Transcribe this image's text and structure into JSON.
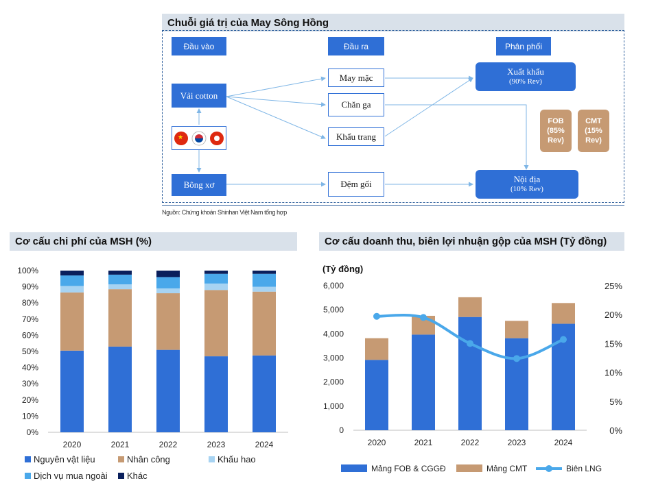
{
  "value_chain": {
    "title": "Chuỗi giá trị của May Sông Hồng",
    "col_inputs": "Đầu vào",
    "col_outputs": "Đầu ra",
    "col_distribution": "Phân phối",
    "input_cotton": "Vải cotton",
    "input_fiber": "Bông xơ",
    "flags": [
      "China",
      "South Korea",
      "Hong Kong"
    ],
    "output_garment": "May mặc",
    "output_bedding": "Chăn ga",
    "output_mask": "Khẩu trang",
    "output_pillow": "Đệm gối",
    "export_label": "Xuất khẩu",
    "export_share": "(90% Rev)",
    "domestic_label": "Nội địa",
    "domestic_share": "(10% Rev)",
    "fob": "FOB (85% Rev)",
    "cmt": "CMT (15% Rev)",
    "source": "Nguồn: Chứng khoán Shinhan Việt Nam tổng hợp"
  },
  "cost_chart_title": "Cơ cấu chi phí của MSH (%)",
  "revenue_chart_title": "Cơ cấu doanh thu, biên lợi nhuận gộp của MSH (Tỷ đồng)",
  "chart_data": [
    {
      "type": "bar",
      "stacked": true,
      "title": "Cơ cấu chi phí của MSH (%)",
      "categories": [
        "2020",
        "2021",
        "2022",
        "2023",
        "2024"
      ],
      "series": [
        {
          "name": "Nguyên vật liệu",
          "color": "#2f6fd6",
          "values": [
            50.5,
            53.0,
            51.0,
            47.0,
            47.5
          ]
        },
        {
          "name": "Nhân công",
          "color": "#c69a73",
          "values": [
            36.0,
            35.5,
            35.0,
            41.0,
            39.5
          ]
        },
        {
          "name": "Khấu hao",
          "color": "#a7d3f2",
          "values": [
            4.0,
            3.0,
            3.0,
            4.0,
            3.0
          ]
        },
        {
          "name": "Dịch vụ mua ngoài",
          "color": "#4aa8ea",
          "values": [
            6.5,
            6.0,
            7.0,
            6.0,
            8.0
          ]
        },
        {
          "name": "Khác",
          "color": "#0a1f5c",
          "values": [
            3.0,
            2.5,
            4.0,
            2.0,
            2.0
          ]
        }
      ],
      "ylim": [
        0,
        100
      ],
      "yticks": [
        "0%",
        "10%",
        "20%",
        "30%",
        "40%",
        "50%",
        "60%",
        "70%",
        "80%",
        "90%",
        "100%"
      ],
      "legend": "bottom"
    },
    {
      "type": "bar",
      "stacked": true,
      "title": "Cơ cấu doanh thu, biên lợi nhuận gộp của MSH (Tỷ đồng)",
      "ylabel": "(Tỷ đồng)",
      "categories": [
        "2020",
        "2021",
        "2022",
        "2023",
        "2024"
      ],
      "series": [
        {
          "name": "Mảng FOB & CGGĐ",
          "color": "#2f6fd6",
          "values": [
            2920,
            3970,
            4700,
            3820,
            4420
          ]
        },
        {
          "name": "Mảng CMT",
          "color": "#c69a73",
          "values": [
            900,
            780,
            820,
            720,
            860
          ]
        }
      ],
      "line": {
        "name": "Biên LNG",
        "color": "#4aa8ea",
        "values": [
          19.7,
          19.5,
          15.0,
          12.4,
          15.7
        ],
        "axis": "right"
      },
      "ylim": [
        0,
        6000
      ],
      "yticks": [
        "0",
        "1,000",
        "2,000",
        "3,000",
        "4,000",
        "5,000",
        "6,000"
      ],
      "y2lim": [
        0,
        25
      ],
      "y2ticks": [
        "0%",
        "5%",
        "10%",
        "15%",
        "20%",
        "25%"
      ],
      "legend": "bottom"
    }
  ]
}
